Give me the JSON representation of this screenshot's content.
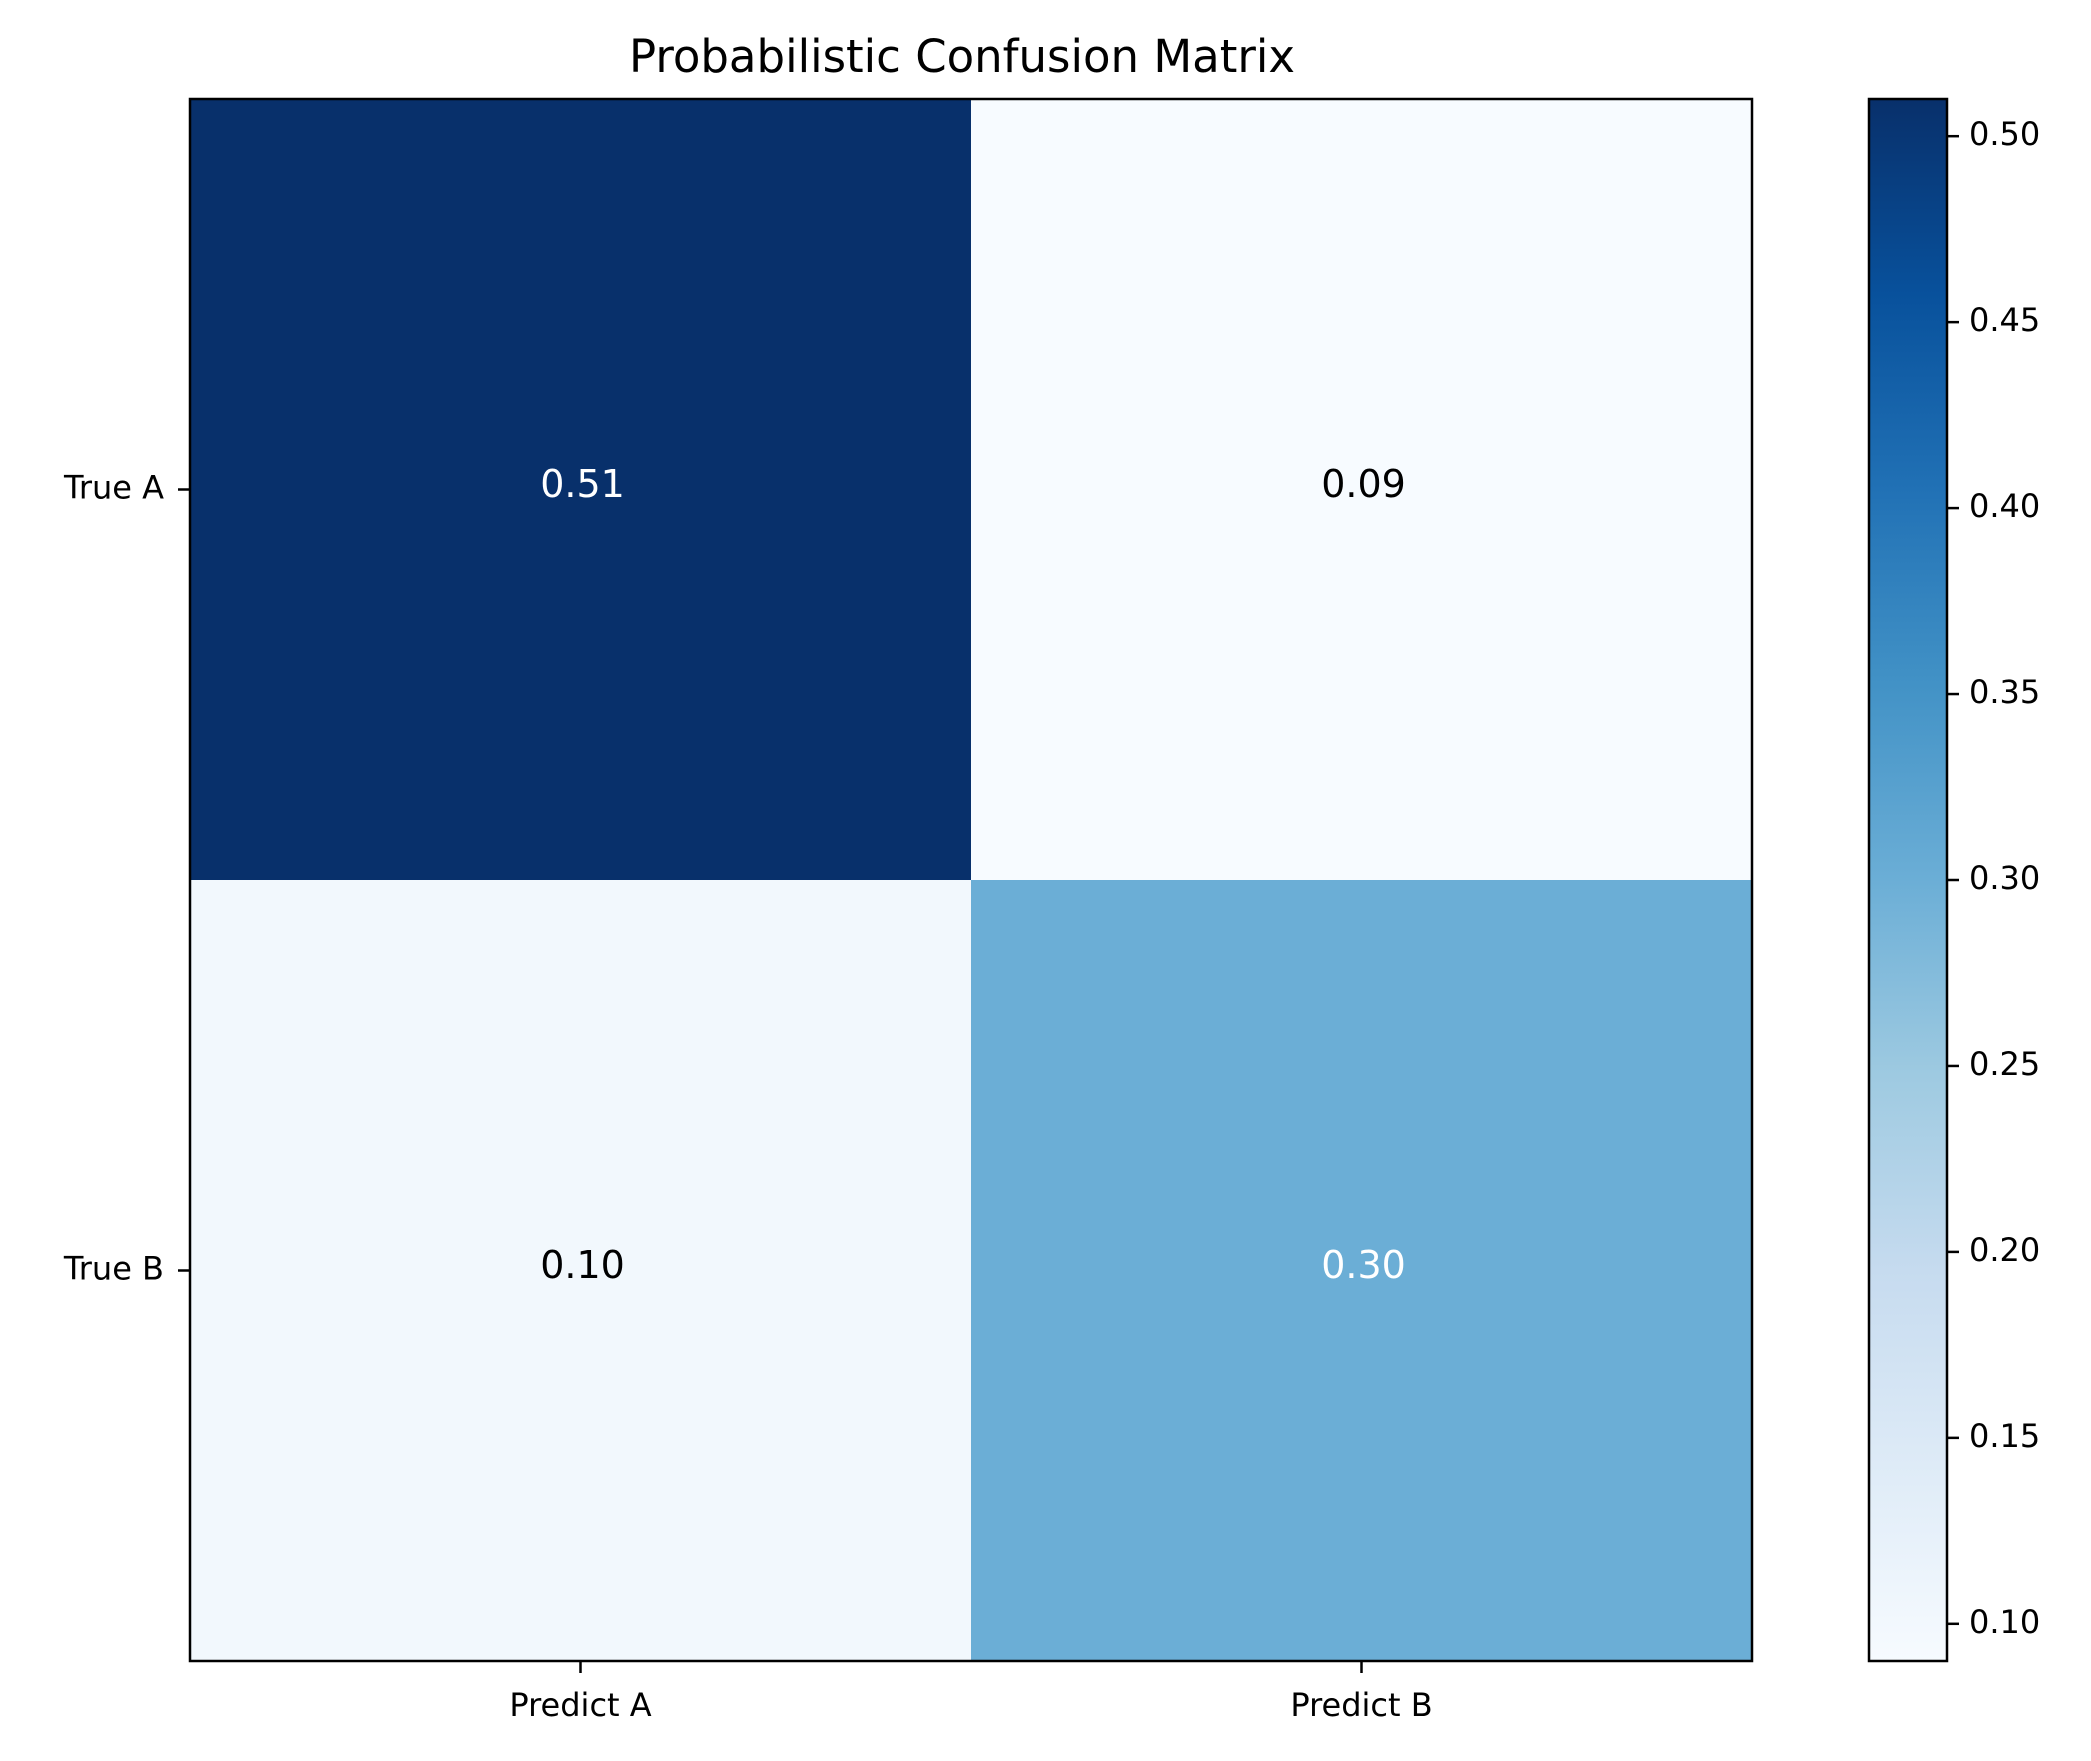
{
  "chart_data": {
    "type": "heatmap",
    "title": "Probabilistic Confusion Matrix",
    "x_categories": [
      "Predict A",
      "Predict B"
    ],
    "y_categories": [
      "True A",
      "True B"
    ],
    "values": [
      [
        0.51,
        0.09
      ],
      [
        0.1,
        0.3
      ]
    ],
    "cell_labels": [
      [
        "0.51",
        "0.09"
      ],
      [
        "0.10",
        "0.30"
      ]
    ],
    "colormap": "Blues",
    "colorbar": {
      "range": [
        0.09,
        0.51
      ],
      "ticks": [
        0.1,
        0.15,
        0.2,
        0.25,
        0.3,
        0.35,
        0.4,
        0.45,
        0.5
      ],
      "tick_labels": [
        "0.10",
        "0.15",
        "0.20",
        "0.25",
        "0.30",
        "0.35",
        "0.40",
        "0.45",
        "0.50"
      ]
    },
    "xlabel": "",
    "ylabel": "",
    "grid": false
  }
}
